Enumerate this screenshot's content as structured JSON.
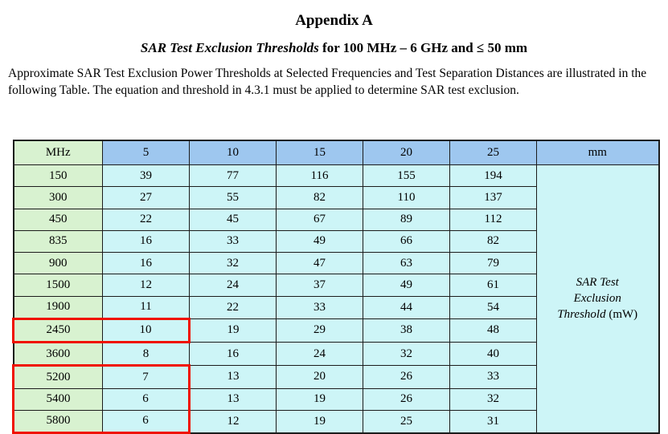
{
  "page": {
    "title": "Appendix A",
    "subtitle_italic": "SAR Test Exclusion Thresholds",
    "subtitle_rest": " for 100 MHz – 6 GHz and ≤ 50 mm",
    "paragraph": "Approximate SAR Test Exclusion Power Thresholds at Selected Frequencies and Test Separation Distances are illustrated in the following Table. The equation and threshold in 4.3.1 must be applied to determine SAR test exclusion."
  },
  "table": {
    "header_freq_label": "MHz",
    "header_distances": [
      "5",
      "10",
      "15",
      "20",
      "25"
    ],
    "header_unit_label": "mm",
    "rows": [
      {
        "mhz": "150",
        "values": [
          "39",
          "77",
          "116",
          "155",
          "194"
        ]
      },
      {
        "mhz": "300",
        "values": [
          "27",
          "55",
          "82",
          "110",
          "137"
        ]
      },
      {
        "mhz": "450",
        "values": [
          "22",
          "45",
          "67",
          "89",
          "112"
        ]
      },
      {
        "mhz": "835",
        "values": [
          "16",
          "33",
          "49",
          "66",
          "82"
        ]
      },
      {
        "mhz": "900",
        "values": [
          "16",
          "32",
          "47",
          "63",
          "79"
        ]
      },
      {
        "mhz": "1500",
        "values": [
          "12",
          "24",
          "37",
          "49",
          "61"
        ]
      },
      {
        "mhz": "1900",
        "values": [
          "11",
          "22",
          "33",
          "44",
          "54"
        ]
      },
      {
        "mhz": "2450",
        "values": [
          "10",
          "19",
          "29",
          "38",
          "48"
        ]
      },
      {
        "mhz": "3600",
        "values": [
          "8",
          "16",
          "24",
          "32",
          "40"
        ]
      },
      {
        "mhz": "5200",
        "values": [
          "7",
          "13",
          "20",
          "26",
          "33"
        ]
      },
      {
        "mhz": "5400",
        "values": [
          "6",
          "13",
          "19",
          "26",
          "32"
        ]
      },
      {
        "mhz": "5800",
        "values": [
          "6",
          "12",
          "19",
          "25",
          "31"
        ]
      }
    ],
    "right_label": {
      "line1": "SAR Test",
      "line2": "Exclusion",
      "line3_italic": "Threshold",
      "line3_unit": " (mW)"
    },
    "highlights": [
      {
        "rows": [
          "2450"
        ]
      },
      {
        "rows": [
          "5200",
          "5400",
          "5800"
        ]
      }
    ]
  },
  "colors": {
    "freq_green": "#d8f2d0",
    "header_blue": "#9ec7ef",
    "cell_cyan": "#cdf5f7",
    "highlight_red": "#f01000",
    "border": "#1c1c1c"
  }
}
